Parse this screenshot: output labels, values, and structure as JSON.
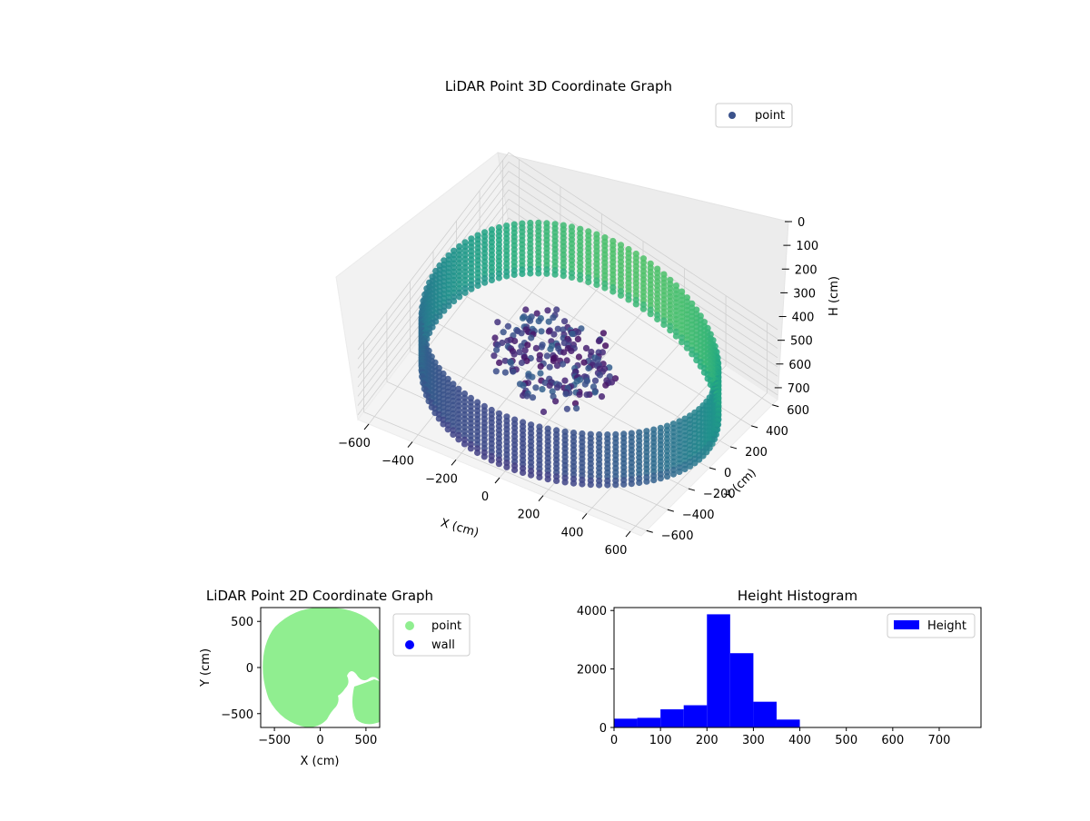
{
  "chart_data": [
    {
      "type": "scatter",
      "projection": "3d",
      "title": "LiDAR Point 3D Coordinate Graph",
      "xlabel": "X (cm)",
      "ylabel": "Y (cm)",
      "zlabel": "H (cm)",
      "xlim": [
        -650,
        650
      ],
      "ylim": [
        -650,
        650
      ],
      "zlim": [
        0,
        750
      ],
      "z_inverted": true,
      "xticks": [
        -600,
        -400,
        -200,
        0,
        200,
        400,
        600
      ],
      "yticks": [
        -600,
        -400,
        -200,
        0,
        200,
        400,
        600
      ],
      "zticks": [
        0,
        100,
        200,
        300,
        400,
        500,
        600,
        700
      ],
      "legend": [
        {
          "label": "point",
          "color": "#3b528b"
        }
      ],
      "legend_position": "top-right",
      "colormap": "viridis",
      "grid": true,
      "point_cloud": {
        "shape": "ring wall with center cluster",
        "radius": 620,
        "height_range": [
          100,
          700
        ]
      }
    },
    {
      "type": "scatter",
      "title": "LiDAR Point 2D Coordinate Graph",
      "xlabel": "X (cm)",
      "ylabel": "Y (cm)",
      "xlim": [
        -650,
        650
      ],
      "ylim": [
        -650,
        650
      ],
      "xticks": [
        -500,
        0,
        500
      ],
      "yticks": [
        -500,
        0,
        500
      ],
      "series": [
        {
          "name": "point",
          "color": "#90ee90"
        },
        {
          "name": "wall",
          "color": "#0000ff"
        }
      ],
      "legend_position": "outside-right"
    },
    {
      "type": "bar",
      "title": "Height Histogram",
      "series": [
        {
          "name": "Height",
          "color": "#0000ff"
        }
      ],
      "bin_edges": [
        0,
        50,
        100,
        150,
        200,
        250,
        300,
        350,
        400
      ],
      "values": [
        300,
        330,
        620,
        760,
        3870,
        2540,
        880,
        270
      ],
      "xlim": [
        0,
        790
      ],
      "ylim": [
        0,
        4100
      ],
      "xticks": [
        0,
        100,
        200,
        300,
        400,
        500,
        600,
        700
      ],
      "yticks": [
        0,
        2000,
        4000
      ],
      "legend_position": "top-right"
    }
  ]
}
